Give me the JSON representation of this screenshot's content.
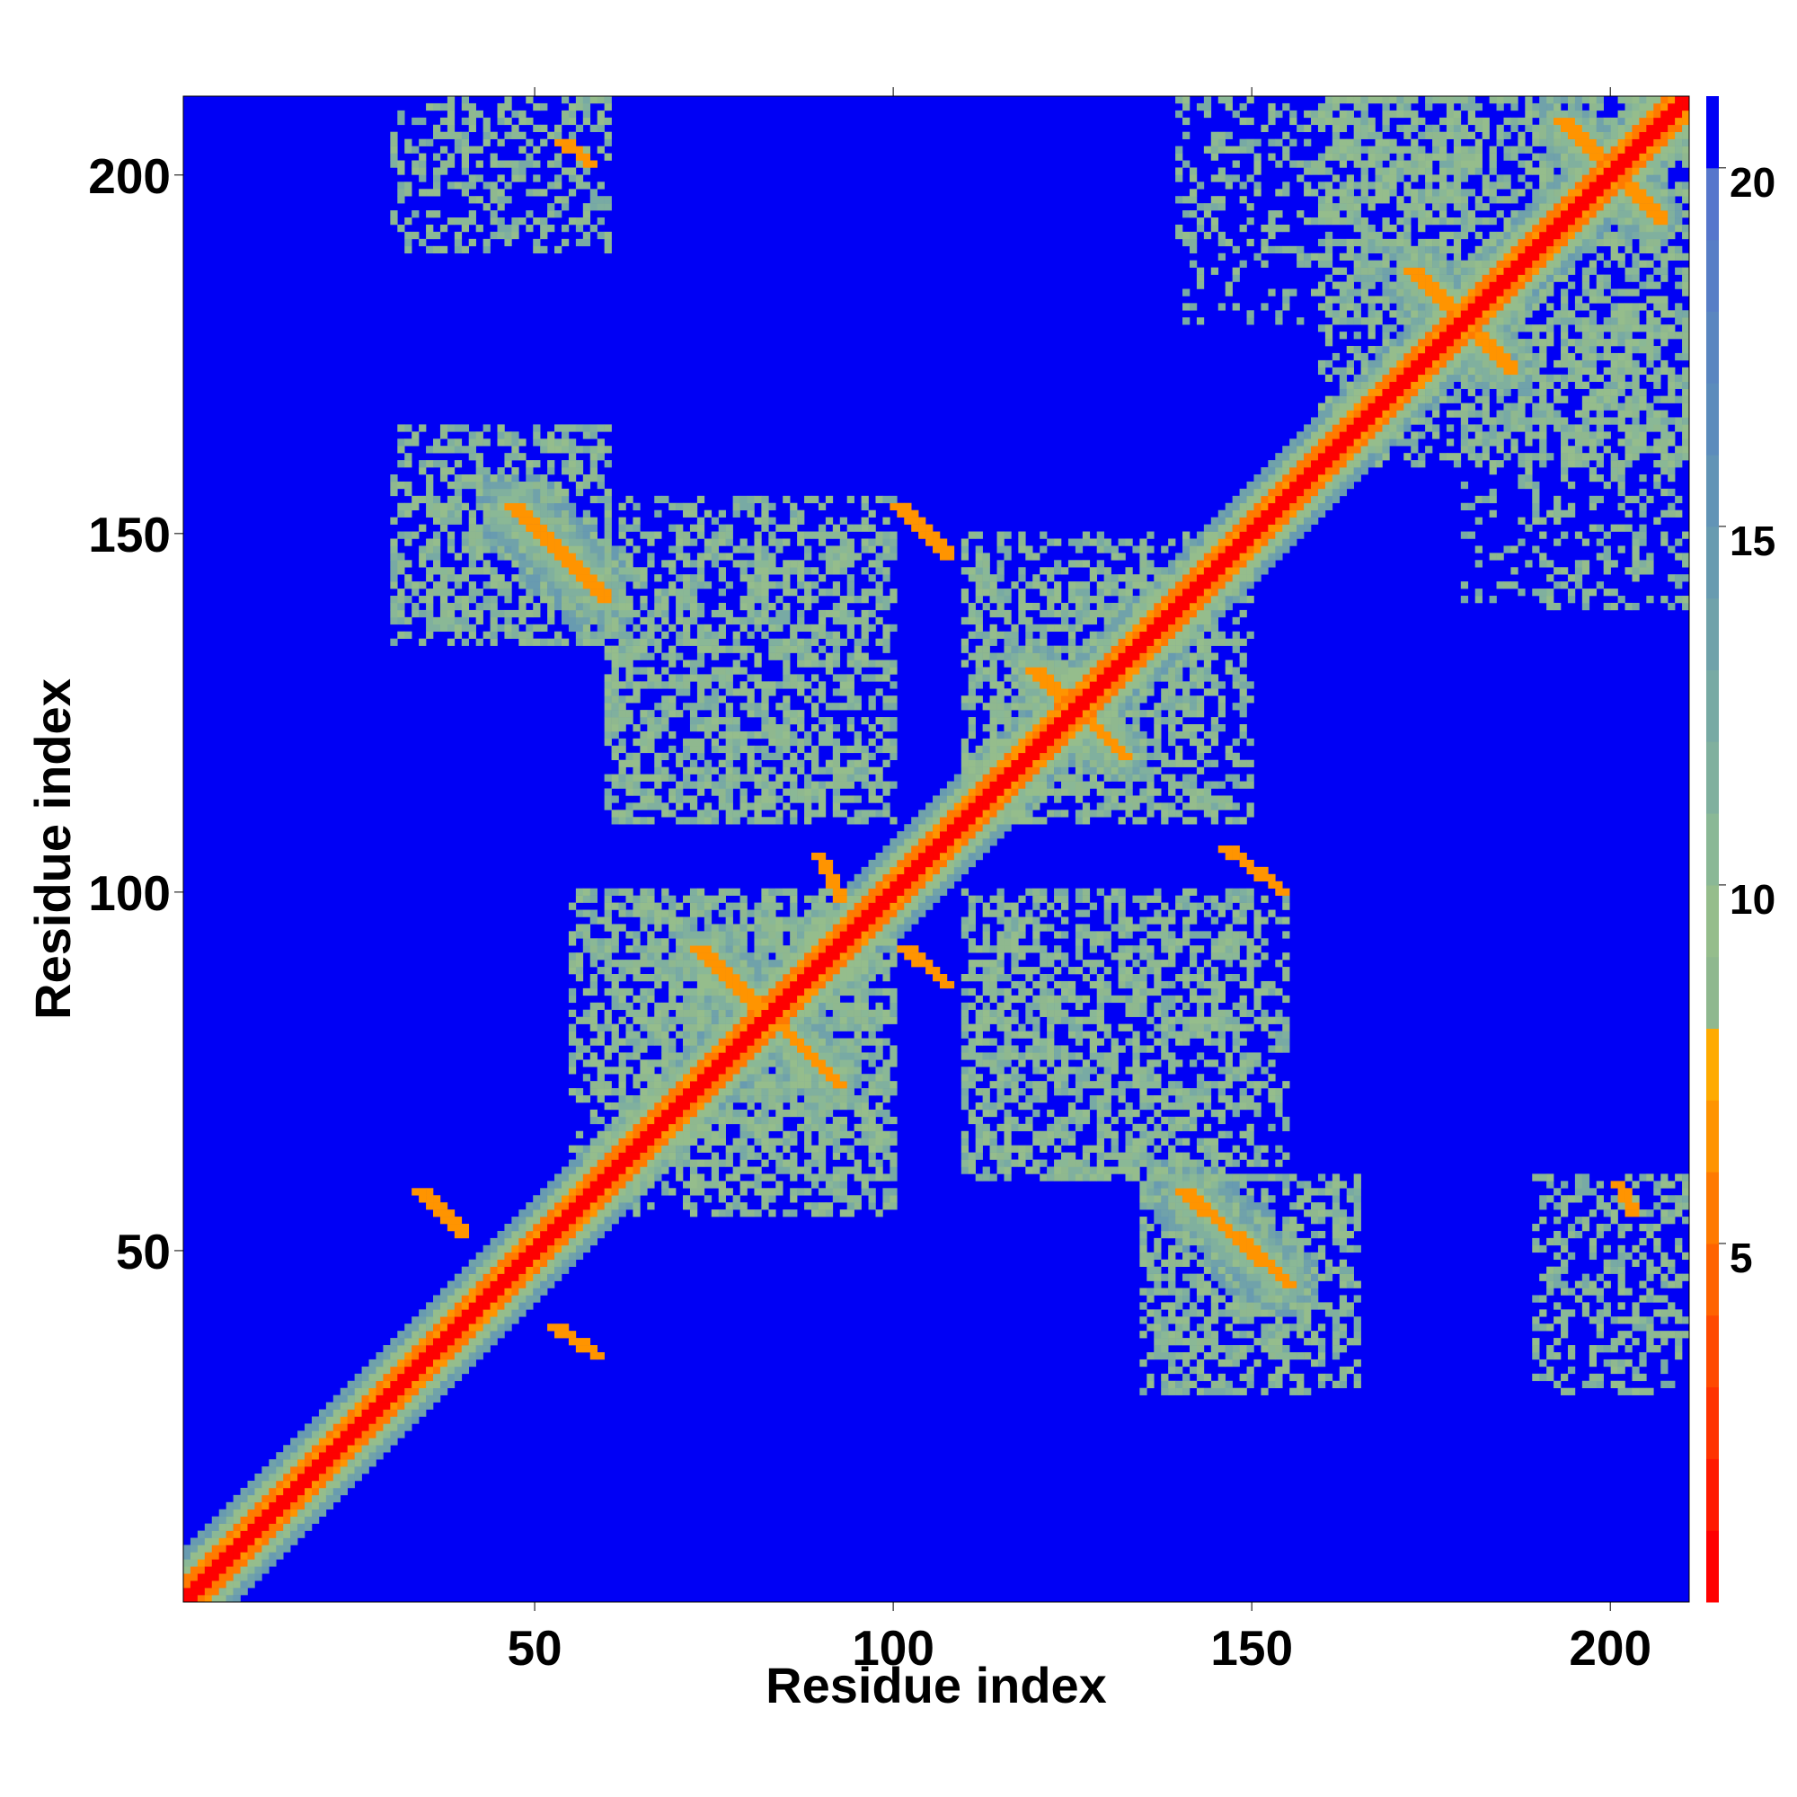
{
  "chart_data": {
    "type": "heatmap",
    "title": "",
    "xlabel": "Residue index",
    "ylabel": "Residue index",
    "n_residues": 211,
    "xlim": [
      1,
      211
    ],
    "ylim": [
      1,
      211
    ],
    "x_ticks": [
      50,
      100,
      150,
      200
    ],
    "y_ticks": [
      50,
      100,
      150,
      200
    ],
    "x_tick_labels": [
      "50",
      "100",
      "150",
      "200"
    ],
    "y_tick_labels": [
      "50",
      "100",
      "150",
      "200"
    ],
    "colorbar": {
      "range": [
        0,
        21
      ],
      "ticks": [
        5,
        10,
        15,
        20
      ],
      "tick_labels": [
        "5",
        "10",
        "15",
        "20"
      ],
      "bins": [
        {
          "max": 1,
          "color": "#ff0000"
        },
        {
          "max": 2,
          "color": "#ff1a00"
        },
        {
          "max": 3,
          "color": "#ff3300"
        },
        {
          "max": 4,
          "color": "#ff4a00"
        },
        {
          "max": 5,
          "color": "#ff6300"
        },
        {
          "max": 6,
          "color": "#ff7a00"
        },
        {
          "max": 7,
          "color": "#ff9400"
        },
        {
          "max": 8,
          "color": "#ffab00"
        },
        {
          "max": 9,
          "color": "#8fb88f"
        },
        {
          "max": 10,
          "color": "#95bd8c"
        },
        {
          "max": 11,
          "color": "#8ab896"
        },
        {
          "max": 12,
          "color": "#80b09e"
        },
        {
          "max": 13,
          "color": "#78aaa4"
        },
        {
          "max": 14,
          "color": "#70a2aa"
        },
        {
          "max": 15,
          "color": "#689bb0"
        },
        {
          "max": 16,
          "color": "#6294b6"
        },
        {
          "max": 17,
          "color": "#5c8cbc"
        },
        {
          "max": 18,
          "color": "#5a86c0"
        },
        {
          "max": 19,
          "color": "#587ec6"
        },
        {
          "max": 20,
          "color": "#5676cc"
        },
        {
          "max": 21,
          "color": "#0000f5"
        }
      ]
    },
    "background_color": "#0000f5",
    "diagonal_value": 1,
    "diagonal_width": 1.6,
    "diagonal_halo": [
      {
        "width": 3.0,
        "value": 5.5
      },
      {
        "width": 5.0,
        "value": 10
      },
      {
        "width": 7.0,
        "value": 14
      }
    ],
    "contact_segments": [
      {
        "from": [
          46,
          154
        ],
        "to": [
          59,
          141
        ],
        "value": 6.5,
        "halo": 4
      },
      {
        "from": [
          100,
          154
        ],
        "to": [
          107,
          147
        ],
        "value": 6.5,
        "halo": 0
      },
      {
        "from": [
          146,
          106
        ],
        "to": [
          154,
          100
        ],
        "value": 6.5,
        "halo": 0
      },
      {
        "from": [
          89,
          105
        ],
        "to": [
          92,
          99
        ],
        "value": 6.5,
        "halo": 0
      },
      {
        "from": [
          101,
          92
        ],
        "to": [
          107,
          87
        ],
        "value": 6.5,
        "halo": 0
      },
      {
        "from": [
          72,
          92
        ],
        "to": [
          92,
          73
        ],
        "value": 6.5,
        "halo": 3
      },
      {
        "from": [
          119,
          131
        ],
        "to": [
          132,
          119
        ],
        "value": 6.5,
        "halo": 3
      },
      {
        "from": [
          140,
          58
        ],
        "to": [
          155,
          45
        ],
        "value": 6.5,
        "halo": 4
      },
      {
        "from": [
          33,
          58
        ],
        "to": [
          39,
          52
        ],
        "value": 6.5,
        "halo": 0
      },
      {
        "from": [
          52,
          39
        ],
        "to": [
          58,
          35
        ],
        "value": 6.5,
        "halo": 0
      },
      {
        "from": [
          172,
          187
        ],
        "to": [
          186,
          173
        ],
        "value": 6.5,
        "halo": 3
      },
      {
        "from": [
          193,
          208
        ],
        "to": [
          207,
          194
        ],
        "value": 6.5,
        "halo": 3
      },
      {
        "from": [
          53,
          205
        ],
        "to": [
          57,
          202
        ],
        "value": 6.5,
        "halo": 0
      },
      {
        "from": [
          201,
          59
        ],
        "to": [
          203,
          55
        ],
        "value": 6.5,
        "halo": 0
      }
    ],
    "contact_regions": [
      {
        "x": [
          60,
          100
        ],
        "y": [
          55,
          100
        ],
        "value": 11,
        "density": 0.45
      },
      {
        "x": [
          110,
          155
        ],
        "y": [
          60,
          100
        ],
        "value": 11,
        "density": 0.35
      },
      {
        "x": [
          60,
          100
        ],
        "y": [
          110,
          150
        ],
        "value": 11,
        "density": 0.35
      },
      {
        "x": [
          110,
          150
        ],
        "y": [
          110,
          145
        ],
        "value": 11,
        "density": 0.4
      },
      {
        "x": [
          30,
          60
        ],
        "y": [
          135,
          165
        ],
        "value": 11,
        "density": 0.3
      },
      {
        "x": [
          135,
          165
        ],
        "y": [
          30,
          60
        ],
        "value": 11,
        "density": 0.3
      },
      {
        "x": [
          160,
          211
        ],
        "y": [
          160,
          211
        ],
        "value": 11,
        "density": 0.3
      },
      {
        "x": [
          30,
          60
        ],
        "y": [
          190,
          211
        ],
        "value": 11,
        "density": 0.2
      },
      {
        "x": [
          190,
          211
        ],
        "y": [
          30,
          60
        ],
        "value": 11,
        "density": 0.2
      },
      {
        "x": [
          140,
          180
        ],
        "y": [
          180,
          211
        ],
        "value": 11,
        "density": 0.2
      },
      {
        "x": [
          190,
          211
        ],
        "y": [
          140,
          180
        ],
        "value": 11,
        "density": 0.2
      }
    ]
  }
}
